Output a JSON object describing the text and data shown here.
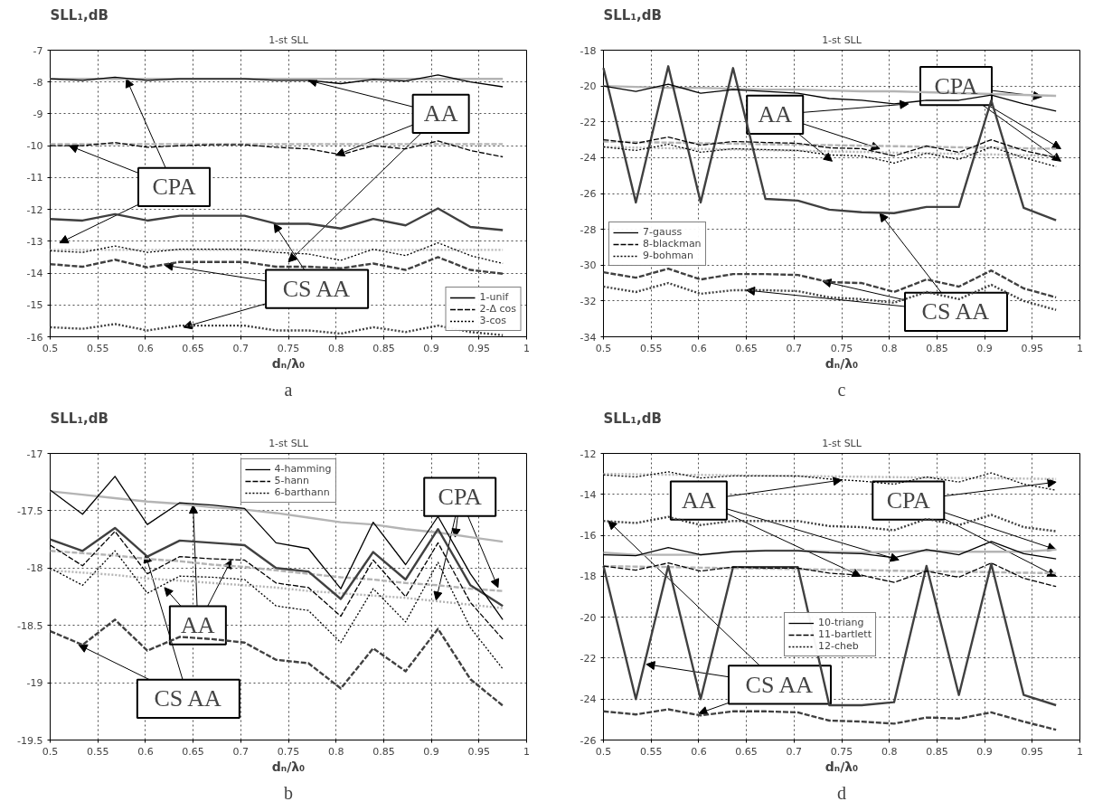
{
  "chart_data": [
    {
      "type": "line",
      "title": "1-st SLL",
      "subtitle": "a",
      "xlabel": "dₙ/λ₀",
      "ylabel": "SLL₁,dB",
      "grid": true,
      "legend": "bottom right",
      "xlim": [
        0.5,
        1
      ],
      "ylim": [
        -16,
        -7
      ],
      "xticks": [
        0.5,
        0.55,
        0.6,
        0.65,
        0.7,
        0.75,
        0.8,
        0.85,
        0.9,
        0.95,
        1
      ],
      "yticks": [
        -16,
        -15,
        -14,
        -13,
        -12,
        -11,
        -10,
        -9,
        -8,
        -7
      ],
      "x": [
        0.5,
        0.534,
        0.568,
        0.602,
        0.636,
        0.67,
        0.704,
        0.737,
        0.771,
        0.805,
        0.839,
        0.873,
        0.907,
        0.941,
        0.975
      ],
      "annotations": [
        {
          "text": "AA",
          "x": 0.771,
          "y": -7.95
        },
        {
          "text": "CPA",
          "x": 0.58,
          "y": -7.9
        },
        {
          "text": "CS AA",
          "x": 0.735,
          "y": -12.45
        }
      ],
      "series": [
        {
          "name": "1-unif",
          "color": "#000000",
          "line_style": "solid",
          "values": [
            -7.9,
            -7.95,
            -7.85,
            -7.95,
            -7.9,
            -7.9,
            -7.9,
            -7.95,
            -7.95,
            -8.05,
            -7.92,
            -7.97,
            -7.78,
            -8.0,
            -8.15
          ]
        },
        {
          "name": "2-Δ cos",
          "color": "#000000",
          "line_style": "dashed",
          "values": [
            -10.0,
            -10.0,
            -9.9,
            -10.05,
            -10.0,
            -9.97,
            -9.97,
            -10.05,
            -10.1,
            -10.28,
            -10.0,
            -10.1,
            -9.85,
            -10.15,
            -10.35
          ]
        },
        {
          "name": "3-cos",
          "color": "#000000",
          "line_style": "dotted",
          "values": [
            -13.3,
            -13.35,
            -13.15,
            -13.35,
            -13.25,
            -13.25,
            -13.25,
            -13.35,
            -13.4,
            -13.6,
            -13.25,
            -13.45,
            -13.05,
            -13.45,
            -13.7
          ]
        },
        {
          "color": "#b4b4b4",
          "line_style": "solid",
          "values": [
            -7.9,
            -7.9,
            -7.9,
            -7.9,
            -7.9,
            -7.9,
            -7.9,
            -7.9,
            -7.9,
            -7.9,
            -7.9,
            -7.9,
            -7.9,
            -7.9,
            -7.9
          ]
        },
        {
          "color": "#b4b4b4",
          "line_style": "dashed",
          "values": [
            -9.95,
            -9.95,
            -9.95,
            -9.95,
            -9.95,
            -9.95,
            -9.95,
            -9.95,
            -9.95,
            -9.95,
            -9.95,
            -9.95,
            -9.95,
            -9.95,
            -9.95
          ]
        },
        {
          "color": "#b4b4b4",
          "line_style": "dotted",
          "values": [
            -13.27,
            -13.27,
            -13.27,
            -13.27,
            -13.27,
            -13.27,
            -13.27,
            -13.27,
            -13.27,
            -13.27,
            -13.27,
            -13.27,
            -13.27,
            -13.27,
            -13.27
          ]
        },
        {
          "color": "#404040",
          "line_style": "solid",
          "values": [
            -12.3,
            -12.35,
            -12.15,
            -12.35,
            -12.2,
            -12.2,
            -12.2,
            -12.45,
            -12.45,
            -12.6,
            -12.3,
            -12.5,
            -11.97,
            -12.55,
            -12.65
          ]
        },
        {
          "color": "#404040",
          "line_style": "dashed",
          "values": [
            -13.72,
            -13.8,
            -13.58,
            -13.82,
            -13.65,
            -13.65,
            -13.65,
            -13.8,
            -13.8,
            -13.85,
            -13.7,
            -13.9,
            -13.5,
            -13.9,
            -14.02
          ]
        },
        {
          "color": "#404040",
          "line_style": "dotted",
          "values": [
            -15.7,
            -15.75,
            -15.6,
            -15.8,
            -15.65,
            -15.65,
            -15.65,
            -15.8,
            -15.8,
            -15.9,
            -15.7,
            -15.85,
            -15.65,
            -15.85,
            -15.95
          ]
        }
      ]
    },
    {
      "type": "line",
      "title": "1-st SLL",
      "subtitle": "c",
      "xlabel": "dₙ/λ₀",
      "ylabel": "SLL₁,dB",
      "grid": true,
      "legend": "left",
      "xlim": [
        0.5,
        1
      ],
      "ylim": [
        -34,
        -18
      ],
      "xticks": [
        0.5,
        0.55,
        0.6,
        0.65,
        0.7,
        0.75,
        0.8,
        0.85,
        0.9,
        0.95,
        1
      ],
      "yticks": [
        -34,
        -32,
        -30,
        -28,
        -26,
        -24,
        -22,
        -20,
        -18
      ],
      "x": [
        0.5,
        0.534,
        0.568,
        0.602,
        0.636,
        0.67,
        0.704,
        0.737,
        0.771,
        0.805,
        0.839,
        0.873,
        0.907,
        0.941,
        0.975
      ],
      "annotations": [
        {
          "text": "AA",
          "x": 0.82,
          "y": -21.0
        },
        {
          "text": "CPA",
          "x": 0.96,
          "y": -20.6
        },
        {
          "text": "CS AA",
          "x": 0.79,
          "y": -27.1
        }
      ],
      "series": [
        {
          "name": "7-gauss",
          "color": "#000000",
          "line_style": "solid",
          "values": [
            -20.0,
            -20.3,
            -19.9,
            -20.4,
            -20.2,
            -20.3,
            -20.4,
            -20.7,
            -20.8,
            -21.0,
            -20.8,
            -20.8,
            -20.5,
            -21.0,
            -21.4
          ]
        },
        {
          "name": "8-blackman",
          "color": "#000000",
          "line_style": "dashed",
          "values": [
            -23.0,
            -23.2,
            -22.85,
            -23.3,
            -23.1,
            -23.15,
            -23.2,
            -23.45,
            -23.5,
            -23.9,
            -23.35,
            -23.7,
            -23.0,
            -23.6,
            -24.0
          ]
        },
        {
          "name": "9-bohman",
          "color": "#000000",
          "line_style": "dotted",
          "values": [
            -23.4,
            -23.6,
            -23.25,
            -23.7,
            -23.5,
            -23.55,
            -23.6,
            -23.85,
            -23.9,
            -24.3,
            -23.75,
            -24.1,
            -23.4,
            -24.0,
            -24.5
          ]
        },
        {
          "color": "#b4b4b4",
          "line_style": "solid",
          "values": [
            -20.0,
            -20.05,
            -20.1,
            -20.1,
            -20.15,
            -20.2,
            -20.2,
            -20.25,
            -20.3,
            -20.3,
            -20.35,
            -20.4,
            -20.45,
            -20.5,
            -20.55
          ]
        },
        {
          "color": "#b4b4b4",
          "line_style": "dashed",
          "values": [
            -23.1,
            -23.13,
            -23.16,
            -23.19,
            -23.22,
            -23.25,
            -23.28,
            -23.3,
            -23.33,
            -23.36,
            -23.39,
            -23.42,
            -23.45,
            -23.48,
            -23.5
          ]
        },
        {
          "color": "#b4b4b4",
          "line_style": "dotted",
          "values": [
            -23.4,
            -23.44,
            -23.47,
            -23.51,
            -23.54,
            -23.58,
            -23.61,
            -23.65,
            -23.68,
            -23.72,
            -23.75,
            -23.79,
            -23.82,
            -23.86,
            -23.9
          ]
        },
        {
          "color": "#404040",
          "line_style": "solid",
          "values": [
            -19.0,
            -26.5,
            -18.9,
            -26.5,
            -19.0,
            -26.3,
            -26.4,
            -26.9,
            -27.05,
            -27.1,
            -26.75,
            -26.75,
            -20.8,
            -26.8,
            -27.5
          ]
        },
        {
          "color": "#404040",
          "line_style": "dashed",
          "values": [
            -30.4,
            -30.7,
            -30.2,
            -30.8,
            -30.5,
            -30.5,
            -30.55,
            -30.95,
            -31.0,
            -31.5,
            -30.8,
            -31.2,
            -30.3,
            -31.3,
            -31.8
          ]
        },
        {
          "color": "#404040",
          "line_style": "dotted",
          "values": [
            -31.2,
            -31.5,
            -31.0,
            -31.6,
            -31.4,
            -31.4,
            -31.45,
            -31.8,
            -31.9,
            -32.1,
            -31.5,
            -31.9,
            -31.1,
            -32.0,
            -32.5
          ]
        }
      ]
    },
    {
      "type": "line",
      "title": "1-st SLL",
      "subtitle": "b",
      "xlabel": "dₙ/λ₀",
      "ylabel": "SLL₁,dB",
      "grid": true,
      "legend": "top",
      "xlim": [
        0.5,
        1
      ],
      "ylim": [
        -19.5,
        -17
      ],
      "xticks": [
        0.5,
        0.55,
        0.6,
        0.65,
        0.7,
        0.75,
        0.8,
        0.85,
        0.9,
        0.95,
        1
      ],
      "yticks": [
        -19.5,
        -19,
        -18.5,
        -18,
        -17.5,
        -17
      ],
      "x": [
        0.5,
        0.534,
        0.568,
        0.602,
        0.636,
        0.67,
        0.704,
        0.737,
        0.771,
        0.805,
        0.839,
        0.873,
        0.907,
        0.941,
        0.975
      ],
      "annotations": [
        {
          "text": "AA",
          "x": 0.65,
          "y": -17.45
        },
        {
          "text": "CPA",
          "x": 0.925,
          "y": -17.73
        },
        {
          "text": "CS AA",
          "x": 0.6,
          "y": -17.88
        }
      ],
      "series": [
        {
          "name": "4-hamming",
          "color": "#000000",
          "line_style": "solid",
          "values": [
            -17.32,
            -17.53,
            -17.2,
            -17.62,
            -17.43,
            -17.45,
            -17.48,
            -17.78,
            -17.83,
            -18.18,
            -17.6,
            -17.97,
            -17.55,
            -18.05,
            -18.45
          ]
        },
        {
          "name": "5-hann",
          "color": "#000000",
          "line_style": "dashed",
          "values": [
            -17.8,
            -17.98,
            -17.68,
            -18.05,
            -17.9,
            -17.92,
            -17.93,
            -18.13,
            -18.17,
            -18.42,
            -17.93,
            -18.25,
            -17.78,
            -18.3,
            -18.62
          ]
        },
        {
          "name": "6-barthann",
          "color": "#000000",
          "line_style": "dotted",
          "values": [
            -18.0,
            -18.15,
            -17.85,
            -18.22,
            -18.07,
            -18.08,
            -18.1,
            -18.33,
            -18.37,
            -18.65,
            -18.18,
            -18.47,
            -17.95,
            -18.52,
            -18.88
          ]
        },
        {
          "color": "#b4b4b4",
          "line_style": "solid",
          "values": [
            -17.33,
            -17.36,
            -17.39,
            -17.42,
            -17.44,
            -17.47,
            -17.49,
            -17.52,
            -17.56,
            -17.6,
            -17.62,
            -17.66,
            -17.69,
            -17.73,
            -17.77
          ]
        },
        {
          "color": "#b4b4b4",
          "line_style": "dashed",
          "values": [
            -17.85,
            -17.87,
            -17.89,
            -17.92,
            -17.94,
            -17.97,
            -17.99,
            -18.02,
            -18.05,
            -18.08,
            -18.1,
            -18.13,
            -18.15,
            -18.18,
            -18.2
          ]
        },
        {
          "color": "#b4b4b4",
          "line_style": "dotted",
          "values": [
            -18.02,
            -18.04,
            -18.06,
            -18.09,
            -18.11,
            -18.13,
            -18.15,
            -18.17,
            -18.2,
            -18.22,
            -18.24,
            -18.26,
            -18.29,
            -18.32,
            -18.35
          ]
        },
        {
          "color": "#404040",
          "line_style": "solid",
          "values": [
            -17.75,
            -17.85,
            -17.65,
            -17.9,
            -17.76,
            -17.78,
            -17.8,
            -18.0,
            -18.03,
            -18.27,
            -17.86,
            -18.1,
            -17.66,
            -18.15,
            -18.33
          ]
        },
        {
          "color": "#404040",
          "line_style": "dashed",
          "values": [
            -18.55,
            -18.67,
            -18.45,
            -18.72,
            -18.6,
            -18.62,
            -18.65,
            -18.8,
            -18.83,
            -19.05,
            -18.7,
            -18.9,
            -18.53,
            -18.97,
            -19.2
          ]
        }
      ]
    },
    {
      "type": "line",
      "title": "1-st SLL",
      "subtitle": "d",
      "xlabel": "dₙ/λ₀",
      "ylabel": "SLL₁,dB",
      "grid": true,
      "legend": "center",
      "xlim": [
        0.5,
        1
      ],
      "ylim": [
        -26,
        -12
      ],
      "xticks": [
        0.5,
        0.55,
        0.6,
        0.65,
        0.7,
        0.75,
        0.8,
        0.85,
        0.9,
        0.95,
        1
      ],
      "yticks": [
        -26,
        -24,
        -22,
        -20,
        -18,
        -16,
        -14,
        -12
      ],
      "x": [
        0.5,
        0.534,
        0.568,
        0.602,
        0.636,
        0.67,
        0.704,
        0.737,
        0.771,
        0.805,
        0.839,
        0.873,
        0.907,
        0.941,
        0.975
      ],
      "annotations": [
        {
          "text": "AA",
          "x": 0.75,
          "y": -13.3
        },
        {
          "text": "CPA",
          "x": 0.975,
          "y": -13.4
        },
        {
          "text": "CS AA",
          "x": 0.505,
          "y": -15.3
        }
      ],
      "series": [
        {
          "name": "10-triang",
          "color": "#000000",
          "line_style": "solid",
          "values": [
            -16.95,
            -17.0,
            -16.6,
            -16.95,
            -16.8,
            -16.75,
            -16.75,
            -16.85,
            -16.9,
            -17.1,
            -16.7,
            -16.95,
            -16.3,
            -16.9,
            -17.15
          ]
        },
        {
          "name": "11-bartlett",
          "color": "#000000",
          "line_style": "dashed",
          "values": [
            -17.5,
            -17.7,
            -17.35,
            -17.75,
            -17.55,
            -17.6,
            -17.6,
            -17.85,
            -17.95,
            -18.3,
            -17.75,
            -18.05,
            -17.35,
            -18.1,
            -18.5
          ]
        },
        {
          "name": "12-cheb",
          "color": "#000000",
          "line_style": "dotted",
          "values": [
            -13.05,
            -13.15,
            -12.9,
            -13.2,
            -13.1,
            -13.1,
            -13.1,
            -13.25,
            -13.35,
            -13.5,
            -13.15,
            -13.4,
            -12.95,
            -13.5,
            -13.8
          ]
        },
        {
          "color": "#b4b4b4",
          "line_style": "solid",
          "values": [
            -16.85,
            -16.95,
            -16.95,
            -16.95,
            -16.8,
            -16.75,
            -16.75,
            -16.8,
            -16.85,
            -16.8,
            -16.75,
            -16.8,
            -16.8,
            -16.8,
            -16.7
          ]
        },
        {
          "color": "#b4b4b4",
          "line_style": "dashed",
          "values": [
            -17.5,
            -17.53,
            -17.55,
            -17.58,
            -17.6,
            -17.63,
            -17.65,
            -17.68,
            -17.7,
            -17.73,
            -17.75,
            -17.78,
            -17.8,
            -17.83,
            -17.85
          ]
        },
        {
          "color": "#b4b4b4",
          "line_style": "dotted",
          "values": [
            -13.0,
            -13.02,
            -13.04,
            -13.05,
            -13.07,
            -13.09,
            -13.11,
            -13.12,
            -13.14,
            -13.16,
            -13.18,
            -13.2,
            -13.21,
            -13.23,
            -13.25
          ]
        },
        {
          "color": "#404040",
          "line_style": "solid",
          "values": [
            -17.5,
            -24.0,
            -17.5,
            -24.0,
            -17.55,
            -17.55,
            -17.55,
            -24.3,
            -24.3,
            -24.15,
            -17.5,
            -23.8,
            -17.4,
            -23.8,
            -24.3
          ]
        },
        {
          "color": "#404040",
          "line_style": "dashed",
          "values": [
            -24.6,
            -24.75,
            -24.5,
            -24.8,
            -24.6,
            -24.6,
            -24.65,
            -25.05,
            -25.1,
            -25.2,
            -24.9,
            -24.95,
            -24.65,
            -25.1,
            -25.5
          ]
        },
        {
          "color": "#404040",
          "line_style": "dotted",
          "values": [
            -15.3,
            -15.4,
            -15.1,
            -15.5,
            -15.3,
            -15.3,
            -15.3,
            -15.55,
            -15.6,
            -15.75,
            -15.2,
            -15.5,
            -15.0,
            -15.6,
            -15.8
          ]
        }
      ]
    }
  ]
}
